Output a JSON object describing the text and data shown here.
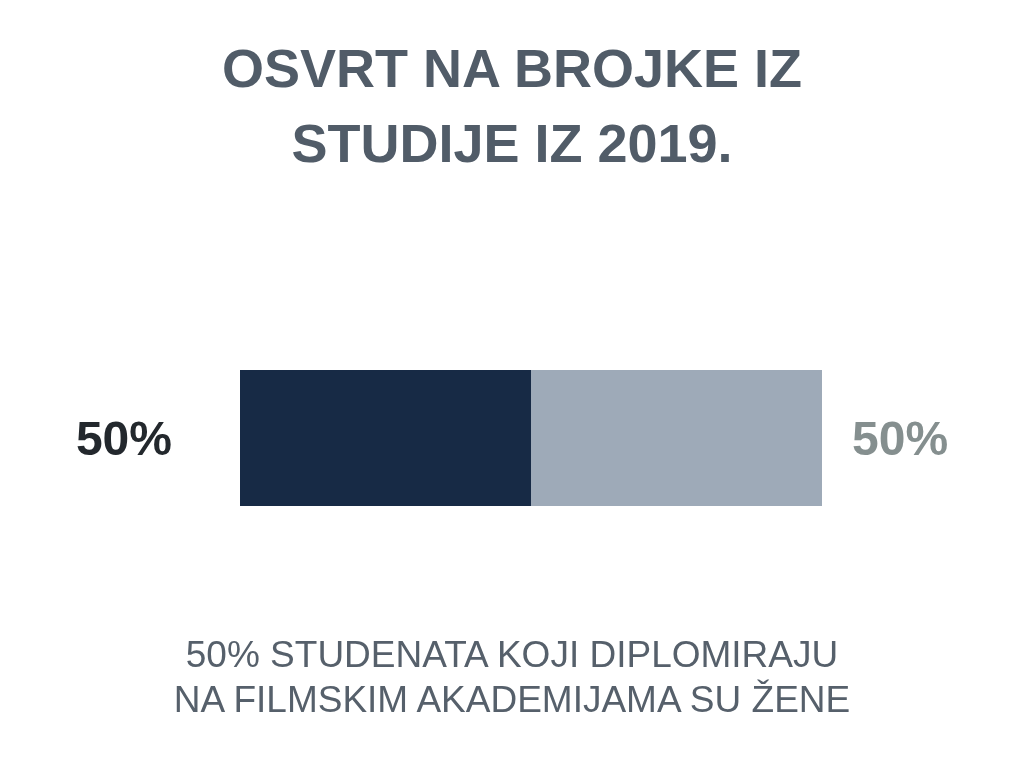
{
  "chart_data": {
    "type": "bar",
    "title": "OSVRT NA BROJKE IZ STUDIJE IZ 2019.",
    "orientation": "horizontal",
    "stacked": true,
    "categories": [
      null
    ],
    "series": [
      {
        "color": "#172a45",
        "values": [
          50
        ],
        "value_labels": [
          "50%"
        ]
      },
      {
        "color": "#9eaab8",
        "values": [
          50
        ],
        "value_labels": [
          "50%"
        ]
      }
    ],
    "xlim": [
      0,
      100
    ],
    "tick_labels": false,
    "annotations": [
      "50% STUDENATA KOJI DIPLOMIRAJU NA FILMSKIM AKADEMIJAMA SU ŽENE"
    ]
  }
}
